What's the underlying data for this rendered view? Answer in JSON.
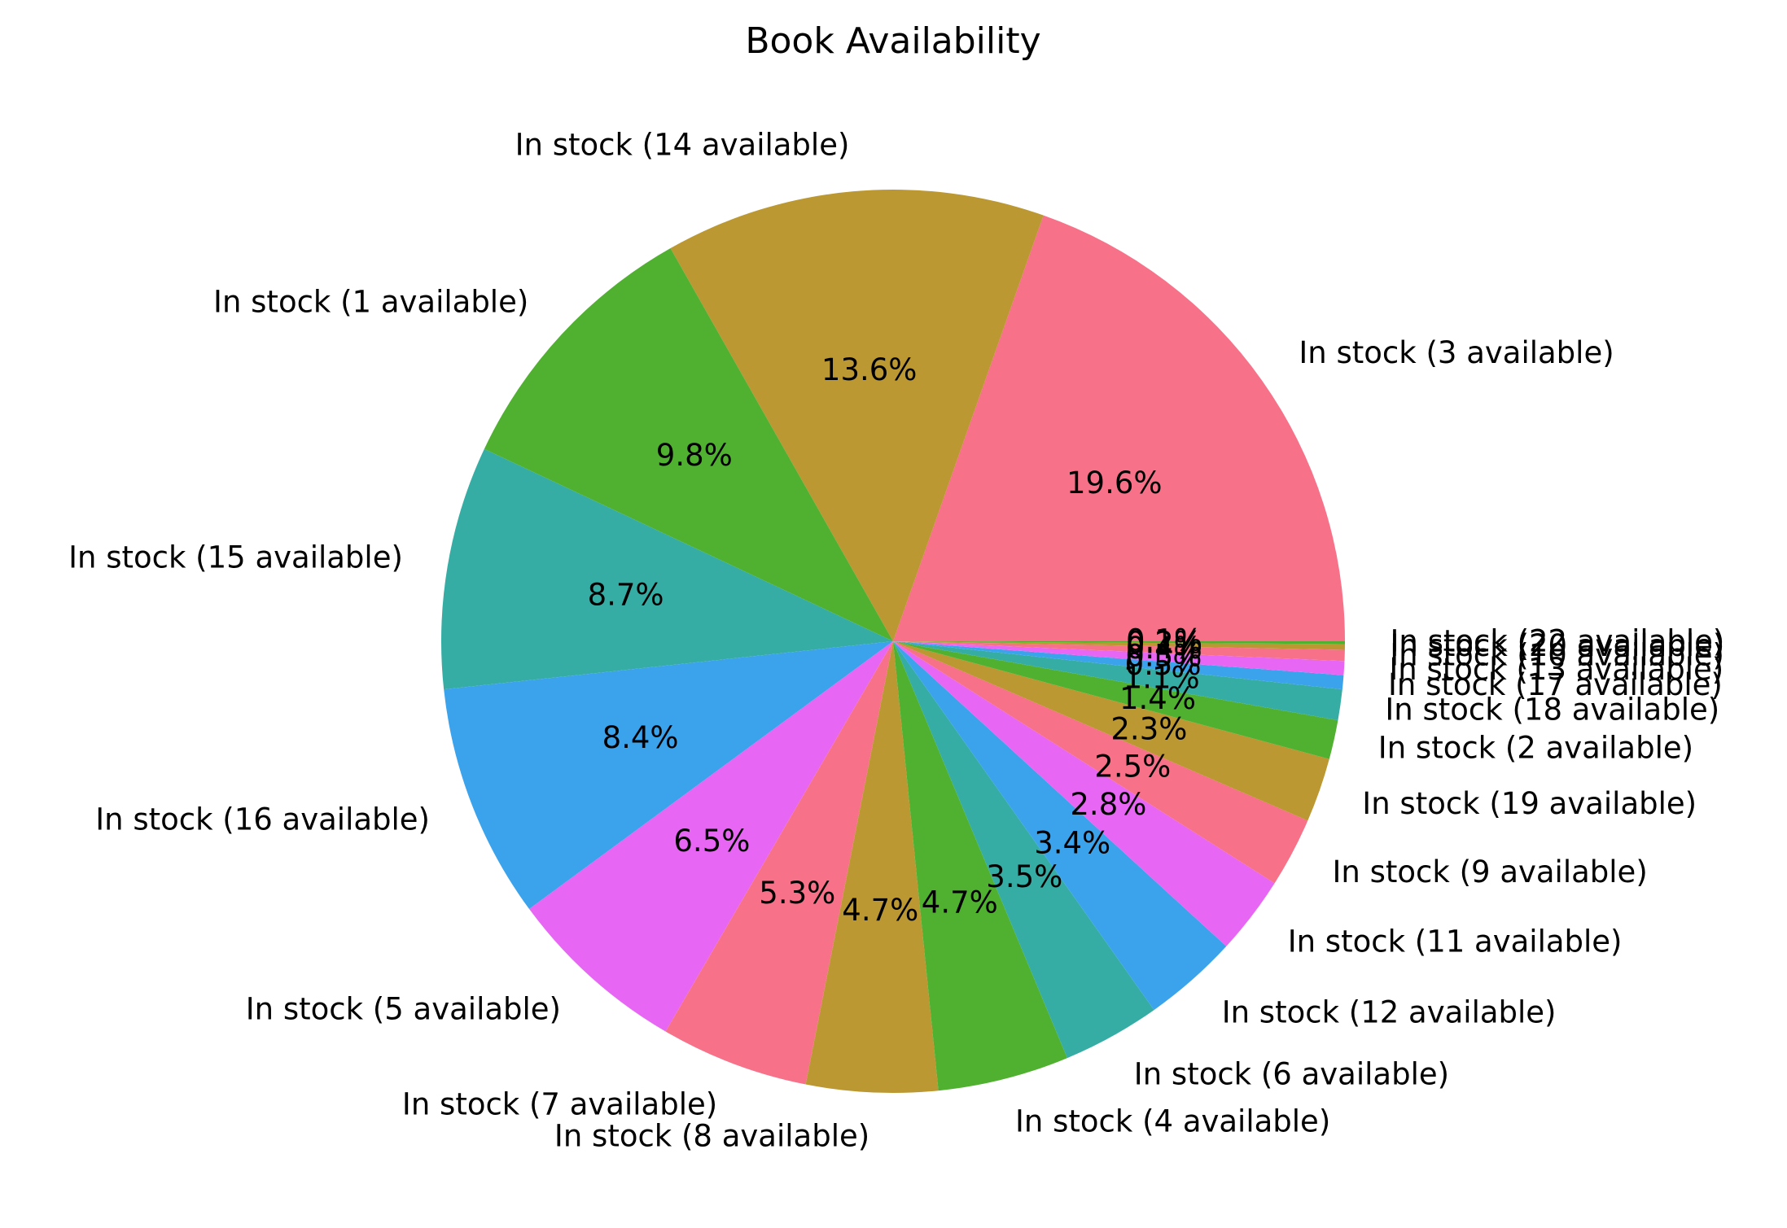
{
  "chart_data": {
    "type": "pie",
    "title": "Book Availability",
    "start_angle_deg": 0,
    "direction": "counterclockwise",
    "slices": [
      {
        "label": "In stock (3 available)",
        "value": 19.6,
        "pct_label": "19.6%",
        "color": "#f77189"
      },
      {
        "label": "In stock (14 available)",
        "value": 13.6,
        "pct_label": "13.6%",
        "color": "#bb9832"
      },
      {
        "label": "In stock (1 available)",
        "value": 9.8,
        "pct_label": "9.8%",
        "color": "#50b131"
      },
      {
        "label": "In stock (15 available)",
        "value": 8.7,
        "pct_label": "8.7%",
        "color": "#36ada4"
      },
      {
        "label": "In stock (16 available)",
        "value": 8.4,
        "pct_label": "8.4%",
        "color": "#3ba3ec"
      },
      {
        "label": "In stock (5 available)",
        "value": 6.5,
        "pct_label": "6.5%",
        "color": "#e866f4"
      },
      {
        "label": "In stock (7 available)",
        "value": 5.3,
        "pct_label": "5.3%",
        "color": "#f77189"
      },
      {
        "label": "In stock (8 available)",
        "value": 4.7,
        "pct_label": "4.7%",
        "color": "#bb9832"
      },
      {
        "label": "In stock (4 available)",
        "value": 4.7,
        "pct_label": "4.7%",
        "color": "#50b131"
      },
      {
        "label": "In stock (6 available)",
        "value": 3.5,
        "pct_label": "3.5%",
        "color": "#36ada4"
      },
      {
        "label": "In stock (12 available)",
        "value": 3.4,
        "pct_label": "3.4%",
        "color": "#3ba3ec"
      },
      {
        "label": "In stock (11 available)",
        "value": 2.8,
        "pct_label": "2.8%",
        "color": "#e866f4"
      },
      {
        "label": "In stock (9 available)",
        "value": 2.5,
        "pct_label": "2.5%",
        "color": "#f77189"
      },
      {
        "label": "In stock (19 available)",
        "value": 2.3,
        "pct_label": "2.3%",
        "color": "#bb9832"
      },
      {
        "label": "In stock (2 available)",
        "value": 1.4,
        "pct_label": "1.4%",
        "color": "#50b131"
      },
      {
        "label": "In stock (18 available)",
        "value": 1.1,
        "pct_label": "1.1%",
        "color": "#36ada4"
      },
      {
        "label": "In stock (17 available)",
        "value": 0.5,
        "pct_label": "0.5%",
        "color": "#3ba3ec"
      },
      {
        "label": "In stock (13 available)",
        "value": 0.5,
        "pct_label": "0.5%",
        "color": "#e866f4"
      },
      {
        "label": "In stock (10 available)",
        "value": 0.4,
        "pct_label": "0.4%",
        "color": "#f77189"
      },
      {
        "label": "In stock (20 available)",
        "value": 0.2,
        "pct_label": "0.2%",
        "color": "#bb9832"
      },
      {
        "label": "In stock (22 available)",
        "value": 0.1,
        "pct_label": "0.1%",
        "color": "#50b131"
      }
    ]
  }
}
